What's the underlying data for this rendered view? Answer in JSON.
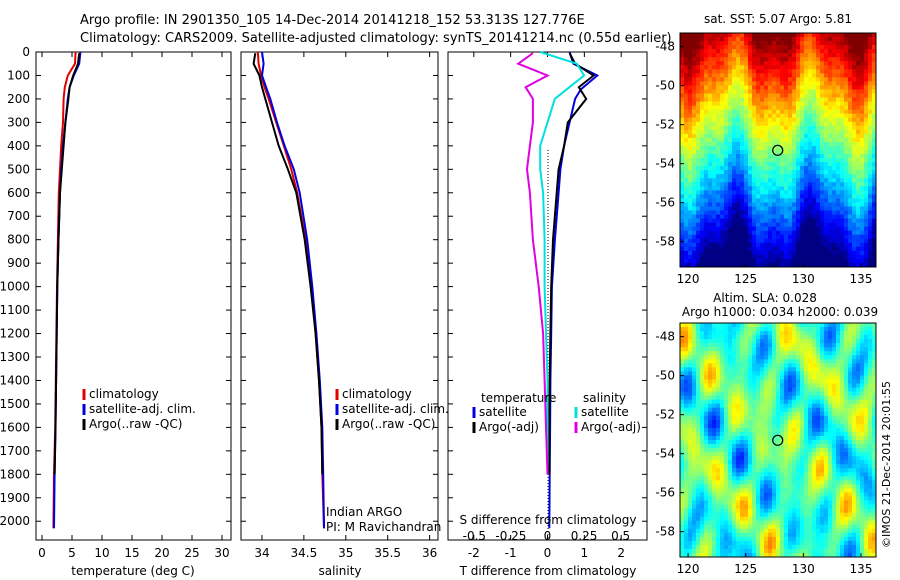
{
  "header": {
    "line1": "Argo profile: IN 2901350_105 14-Dec-2014 20141218_152 53.313S 127.776E",
    "line2": "Climatology: CARS2009. Satellite-adjusted climatology: synTS_20141214.nc (0.55d earlier)"
  },
  "credit": {
    "text": "©IMOS 21-Dec-2014 20:01:55"
  },
  "colors": {
    "climatology": "#e00000",
    "satellite": "#0000e0",
    "argo": "#000000",
    "satellite_salinity": "#00e0e0",
    "argo_salinity": "#e000e0"
  },
  "chart_data": [
    {
      "id": "temperature",
      "type": "line",
      "xlabel": "temperature (deg C)",
      "ylabel": "",
      "xlim": [
        -1,
        31.5
      ],
      "ylim": [
        2080,
        0
      ],
      "xticks": [
        "0",
        "5",
        "10",
        "15",
        "20",
        "25",
        "30"
      ],
      "xtick_values": [
        0,
        5,
        10,
        15,
        20,
        25,
        30
      ],
      "yticks": [
        "0",
        "100",
        "200",
        "300",
        "400",
        "500",
        "600",
        "700",
        "800",
        "900",
        "1000",
        "1100",
        "1200",
        "1300",
        "1400",
        "1500",
        "1600",
        "1700",
        "1800",
        "1900",
        "2000"
      ],
      "ytick_values": [
        0,
        100,
        200,
        300,
        400,
        500,
        600,
        700,
        800,
        900,
        1000,
        1100,
        1200,
        1300,
        1400,
        1500,
        1600,
        1700,
        1800,
        1900,
        2000
      ],
      "legend": [
        "climatology",
        "satellite-adj. clim.",
        "Argo(..raw -QC)"
      ],
      "legend_position": "lower-center",
      "series": [
        {
          "name": "climatology",
          "color": "#e00000",
          "x": [
            5.6,
            5.5,
            4.3,
            3.8,
            3.6,
            3.5,
            3.2,
            3.0,
            2.8,
            2.65,
            2.5,
            2.4,
            2.3,
            2.2,
            2.0,
            1.9
          ],
          "y": [
            0,
            50,
            100,
            150,
            200,
            300,
            400,
            500,
            600,
            800,
            1000,
            1200,
            1400,
            1600,
            1800,
            2030
          ]
        },
        {
          "name": "satellite-adj. clim.",
          "color": "#0000e0",
          "x": [
            6.4,
            6.2,
            5.3,
            4.6,
            4.3,
            3.9,
            3.5,
            3.2,
            3.0,
            2.75,
            2.55,
            2.45,
            2.35,
            2.25,
            2.1,
            2.0
          ],
          "y": [
            0,
            50,
            100,
            150,
            200,
            300,
            400,
            500,
            600,
            800,
            1000,
            1200,
            1400,
            1600,
            1800,
            2030
          ]
        },
        {
          "name": "Argo(..raw -QC)",
          "color": "#000000",
          "x": [
            6.2,
            6.0,
            5.2,
            4.6,
            4.4,
            3.9,
            3.6,
            3.3,
            3.0,
            2.75,
            2.55,
            2.45,
            2.35,
            2.25,
            2.1
          ],
          "y": [
            5,
            50,
            100,
            150,
            200,
            300,
            400,
            500,
            600,
            800,
            1000,
            1200,
            1400,
            1600,
            1800
          ]
        }
      ]
    },
    {
      "id": "salinity",
      "type": "line",
      "xlabel": "salinity",
      "ylabel": "",
      "xlim": [
        33.75,
        36.1
      ],
      "ylim": [
        2080,
        0
      ],
      "xticks": [
        "34",
        "34.5",
        "35",
        "35.5",
        "36"
      ],
      "xtick_values": [
        34,
        34.5,
        35,
        35.5,
        36
      ],
      "legend": [
        "climatology",
        "satellite-adj. clim.",
        "Argo(..raw -QC)"
      ],
      "legend_position": "lower-right",
      "annotation": [
        "Indian ARGO",
        "PI: M Ravichandran"
      ],
      "series": [
        {
          "name": "climatology",
          "color": "#e00000",
          "x": [
            33.95,
            33.96,
            33.99,
            34.03,
            34.08,
            34.17,
            34.26,
            34.35,
            34.42,
            34.52,
            34.59,
            34.64,
            34.68,
            34.71,
            34.72,
            34.74
          ],
          "y": [
            0,
            50,
            100,
            150,
            200,
            300,
            400,
            500,
            600,
            800,
            1000,
            1200,
            1400,
            1600,
            1800,
            2030
          ]
        },
        {
          "name": "satellite-adj. clim.",
          "color": "#0000e0",
          "x": [
            34.0,
            34.02,
            34.0,
            34.05,
            34.1,
            34.18,
            34.27,
            34.38,
            34.45,
            34.54,
            34.6,
            34.65,
            34.69,
            34.72,
            34.73,
            34.74
          ],
          "y": [
            0,
            50,
            100,
            150,
            200,
            300,
            400,
            500,
            600,
            800,
            1000,
            1200,
            1400,
            1600,
            1800,
            2030
          ]
        },
        {
          "name": "Argo(..raw -QC)",
          "color": "#000000",
          "x": [
            33.92,
            33.9,
            33.97,
            34.0,
            34.04,
            34.12,
            34.2,
            34.31,
            34.41,
            34.51,
            34.58,
            34.64,
            34.68,
            34.71,
            34.72
          ],
          "y": [
            5,
            50,
            100,
            150,
            200,
            300,
            400,
            500,
            600,
            800,
            1000,
            1200,
            1400,
            1600,
            1800
          ]
        }
      ]
    },
    {
      "id": "difference",
      "type": "line",
      "xlabel": "T difference from climatology",
      "top_label": "S difference from climatology",
      "xlim": [
        -2.7,
        2.7
      ],
      "ylim": [
        2080,
        0
      ],
      "xticks": [
        "-2",
        "-1",
        "0",
        "1",
        "2"
      ],
      "xtick_values": [
        -2,
        -1,
        0,
        1,
        2
      ],
      "sticks": [
        "-0.5",
        "-0.25",
        "0",
        "0.25",
        "0.5"
      ],
      "stick_values": [
        -0.5,
        -0.25,
        0,
        0.25,
        0.5
      ],
      "legend_temperature": {
        "heading": "temperature",
        "items": [
          "satellite",
          "Argo(-adj)"
        ]
      },
      "legend_salinity": {
        "heading": "salinity",
        "items": [
          "satellite",
          "Argo(-adj)"
        ]
      },
      "series": [
        {
          "name": "satellite",
          "group": "temperature",
          "color": "#0000e0",
          "x": [
            0.6,
            0.7,
            1.35,
            0.9,
            0.75,
            0.6,
            0.45,
            0.35,
            0.3,
            0.2,
            0.12,
            0.1,
            0.08,
            0.07,
            0.06,
            0.05
          ],
          "y": [
            0,
            50,
            100,
            160,
            200,
            300,
            400,
            500,
            600,
            800,
            1000,
            1200,
            1400,
            1600,
            1800,
            2030
          ]
        },
        {
          "name": "Argo(-adj)",
          "group": "temperature",
          "color": "#000000",
          "x": [
            0.6,
            0.75,
            1.25,
            0.85,
            1.05,
            0.55,
            0.45,
            0.3,
            0.25,
            0.15,
            0.1,
            0.08,
            0.06,
            0.05,
            0.05
          ],
          "y": [
            5,
            50,
            100,
            150,
            200,
            300,
            400,
            500,
            600,
            800,
            1000,
            1200,
            1400,
            1600,
            1800
          ]
        },
        {
          "name": "satellite",
          "group": "salinity",
          "color": "#00e0e0",
          "x": [
            -0.05,
            0.2,
            0.25,
            0.15,
            0.05,
            0.0,
            -0.05,
            -0.05,
            -0.03,
            -0.02,
            -0.02,
            -0.01,
            0.0,
            0.0,
            0.0
          ],
          "y": [
            0,
            50,
            100,
            150,
            200,
            300,
            400,
            500,
            600,
            800,
            1000,
            1200,
            1400,
            1600,
            1800
          ]
        },
        {
          "name": "Argo(-adj)",
          "group": "salinity",
          "color": "#e000e0",
          "x": [
            -0.1,
            -0.2,
            0.0,
            -0.15,
            -0.1,
            -0.1,
            -0.12,
            -0.14,
            -0.12,
            -0.1,
            -0.06,
            -0.03,
            -0.02,
            -0.01,
            0.0
          ],
          "y": [
            5,
            50,
            100,
            150,
            200,
            300,
            400,
            500,
            600,
            800,
            1000,
            1200,
            1400,
            1600,
            1800
          ]
        }
      ]
    },
    {
      "id": "sst_map",
      "type": "heatmap",
      "title": "sat. SST: 5.07 Argo: 5.81",
      "xlim": [
        119.3,
        136.3
      ],
      "ylim": [
        -59.3,
        -47.3
      ],
      "xticks": [
        "120",
        "125",
        "130",
        "135"
      ],
      "xtick_values": [
        120,
        125,
        130,
        135
      ],
      "yticks": [
        "-48",
        "-50",
        "-52",
        "-54",
        "-56",
        "-58"
      ],
      "ytick_values": [
        -48,
        -50,
        -52,
        -54,
        -56,
        -58
      ],
      "marker": {
        "lon": 127.776,
        "lat": -53.313
      },
      "colormap": "jet",
      "value_range": [
        0,
        10
      ]
    },
    {
      "id": "sla_map",
      "type": "heatmap",
      "title": "Altim. SLA: 0.028",
      "subtitle": "Argo h1000: 0.034 h2000: 0.039",
      "xlim": [
        119.3,
        136.3
      ],
      "ylim": [
        -59.3,
        -47.3
      ],
      "xticks": [
        "120",
        "125",
        "130",
        "135"
      ],
      "xtick_values": [
        120,
        125,
        130,
        135
      ],
      "yticks": [
        "-48",
        "-50",
        "-52",
        "-54",
        "-56",
        "-58"
      ],
      "ytick_values": [
        -48,
        -50,
        -52,
        -54,
        -56,
        -58
      ],
      "marker": {
        "lon": 127.776,
        "lat": -53.313
      },
      "colormap": "jet",
      "value_range": [
        -0.2,
        0.2
      ]
    }
  ]
}
